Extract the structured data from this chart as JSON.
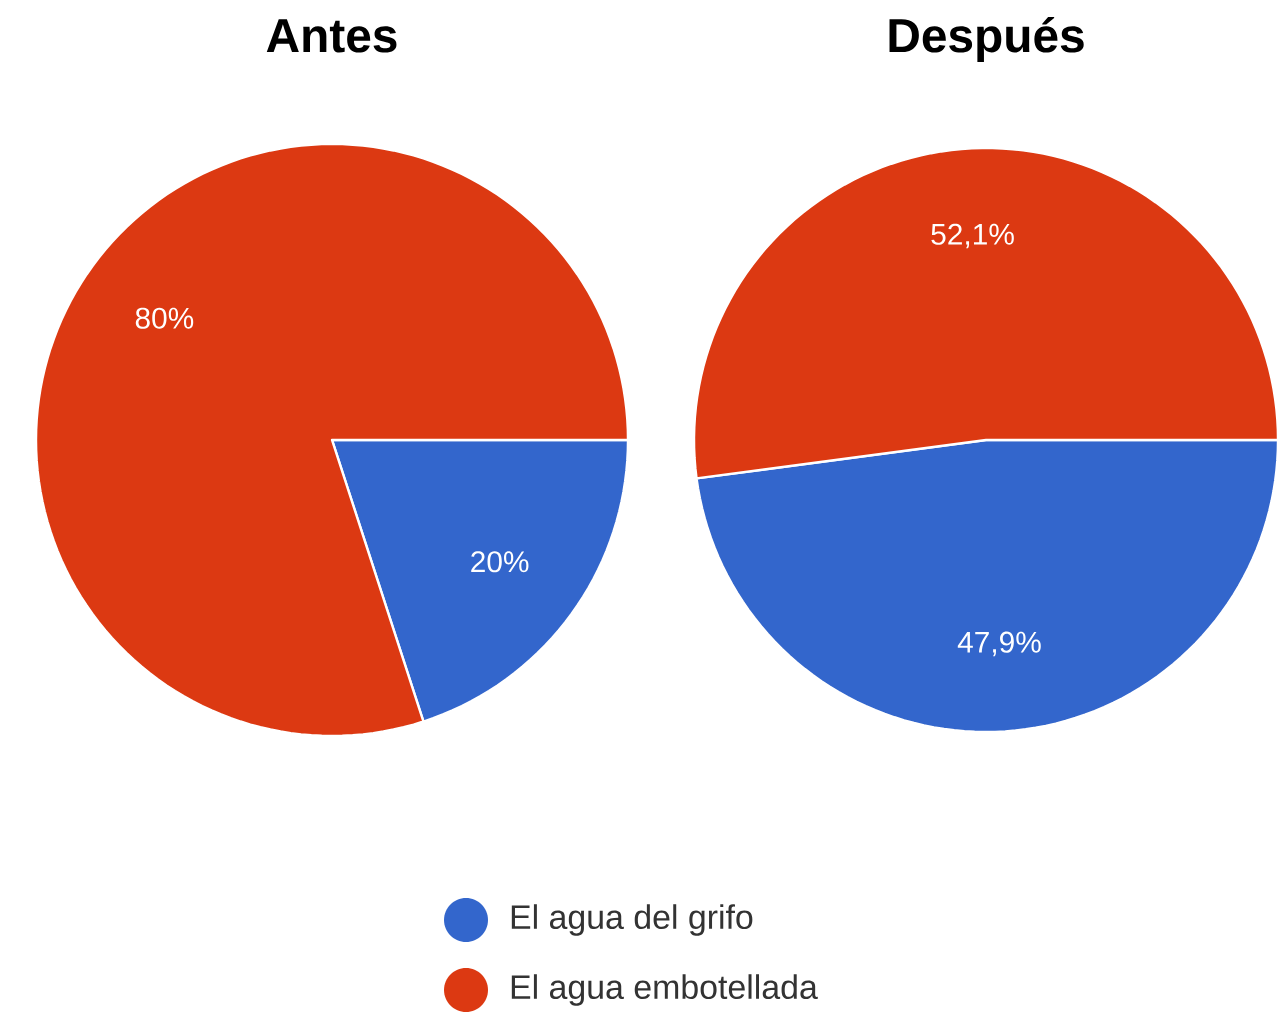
{
  "chart_data": [
    {
      "type": "pie",
      "title": "Antes",
      "categories": [
        "El agua del grifo",
        "El agua embotellada"
      ],
      "values": [
        20,
        80
      ],
      "colors": [
        "#3366cc",
        "#dc3912"
      ],
      "value_labels": [
        "20%",
        "80%"
      ],
      "legend": "bottom"
    },
    {
      "type": "pie",
      "title": "Después",
      "categories": [
        null,
        null
      ],
      "values": [
        47.9,
        52.1
      ],
      "colors": [
        "#3366cc",
        "#dc3912"
      ],
      "value_labels": [
        "47,9%",
        "52,1%"
      ]
    }
  ]
}
